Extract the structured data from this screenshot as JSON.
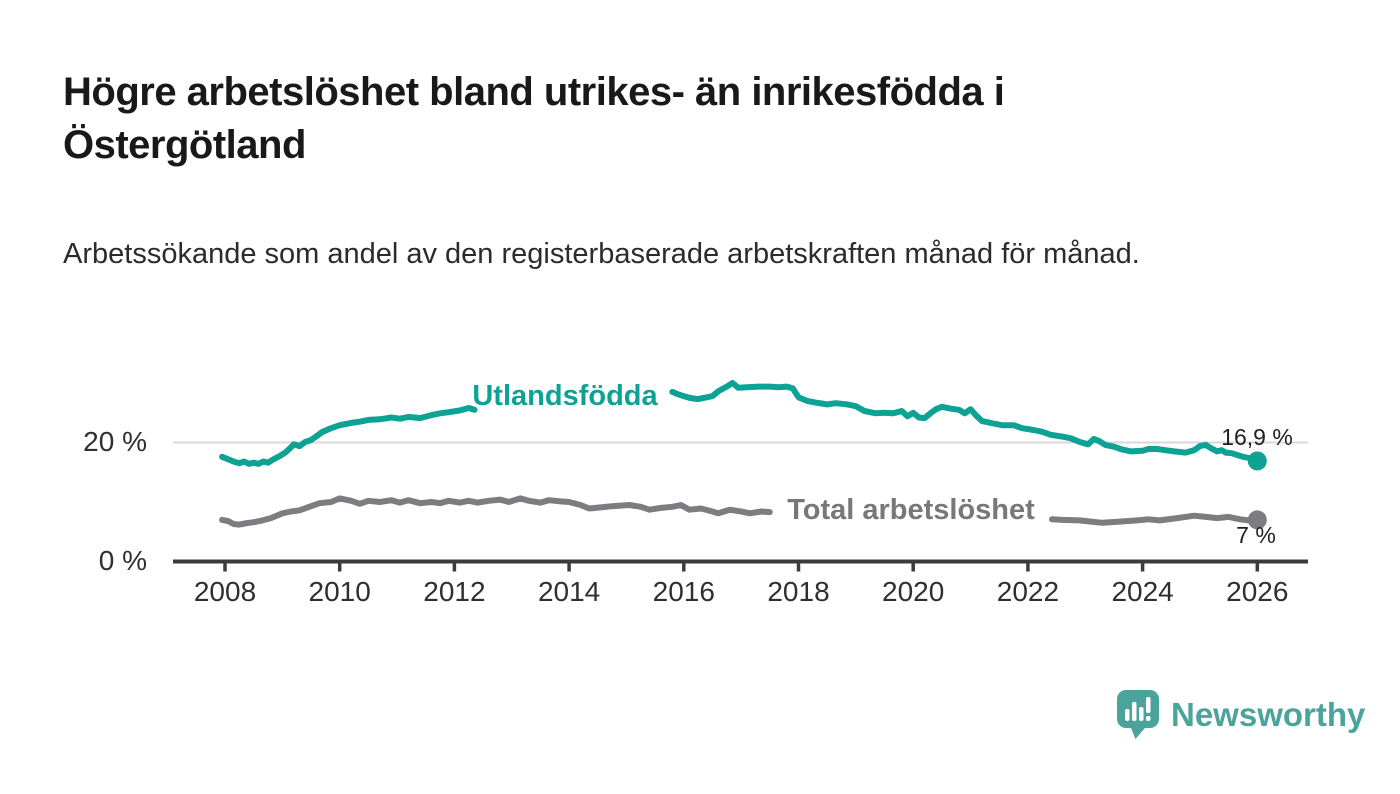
{
  "header": {
    "title": "Högre arbetslöshet bland utrikes- än inrikesfödda i Östergötland",
    "subtitle": "Arbetssökande som andel av den registerbaserade arbetskraften månad för månad."
  },
  "footer": {
    "brand": "Newsworthy"
  },
  "colors": {
    "series_foreign_born": "#0da294",
    "series_total": "#7c7c81",
    "axis": "#3b3b3b",
    "gridline": "#d8d8d8",
    "brand_teal": "#4ba49c",
    "text_dark": "#191919"
  },
  "chart_data": {
    "type": "line",
    "title": "Högre arbetslöshet bland utrikes- än inrikesfödda i Östergötland",
    "subtitle": "Arbetssökande som andel av den registerbaserade arbetskraften månad för månad.",
    "xlabel": "",
    "ylabel": "",
    "grid": "single horizontal gridline at 20 %",
    "legend_position": "inline labels on lines, end-value labels at right",
    "x_axis": {
      "range": [
        2007.9,
        2026.2
      ],
      "ticks": [
        2008,
        2010,
        2012,
        2014,
        2016,
        2018,
        2020,
        2022,
        2024,
        2026
      ]
    },
    "y_axis": {
      "range": [
        0,
        33
      ],
      "unit": "%",
      "ticks": [
        {
          "value": 20,
          "label": "20 %"
        },
        {
          "value": 0,
          "label": "0 %"
        }
      ],
      "gridline_values": [
        20
      ]
    },
    "series": [
      {
        "name": "Utlandsfödda",
        "color": "#0da294",
        "end_label": "16,9 %",
        "end_value": 16.9,
        "label_break": [
          2012.4,
          2015.75
        ],
        "points": [
          [
            2007.95,
            17.6
          ],
          [
            2008.05,
            17.2
          ],
          [
            2008.15,
            16.8
          ],
          [
            2008.25,
            16.5
          ],
          [
            2008.33,
            16.8
          ],
          [
            2008.42,
            16.4
          ],
          [
            2008.5,
            16.6
          ],
          [
            2008.58,
            16.4
          ],
          [
            2008.67,
            16.8
          ],
          [
            2008.75,
            16.6
          ],
          [
            2008.85,
            17.2
          ],
          [
            2008.95,
            17.7
          ],
          [
            2009.05,
            18.3
          ],
          [
            2009.15,
            19.2
          ],
          [
            2009.2,
            19.7
          ],
          [
            2009.3,
            19.4
          ],
          [
            2009.4,
            20.1
          ],
          [
            2009.5,
            20.4
          ],
          [
            2009.6,
            21.1
          ],
          [
            2009.7,
            21.8
          ],
          [
            2009.85,
            22.4
          ],
          [
            2010.0,
            22.9
          ],
          [
            2010.2,
            23.3
          ],
          [
            2010.35,
            23.5
          ],
          [
            2010.5,
            23.8
          ],
          [
            2010.7,
            23.9
          ],
          [
            2010.9,
            24.2
          ],
          [
            2011.05,
            24.0
          ],
          [
            2011.2,
            24.3
          ],
          [
            2011.4,
            24.1
          ],
          [
            2011.6,
            24.6
          ],
          [
            2011.75,
            24.9
          ],
          [
            2011.9,
            25.1
          ],
          [
            2012.1,
            25.4
          ],
          [
            2012.25,
            25.8
          ],
          [
            2012.35,
            25.5
          ],
          [
            2012.6,
            25.9
          ],
          [
            2013.0,
            26.3
          ],
          [
            2013.5,
            26.7
          ],
          [
            2014.0,
            27.1
          ],
          [
            2014.5,
            27.5
          ],
          [
            2015.0,
            27.9
          ],
          [
            2015.4,
            28.2
          ],
          [
            2015.8,
            28.5
          ],
          [
            2015.9,
            28.1
          ],
          [
            2016.0,
            27.8
          ],
          [
            2016.1,
            27.5
          ],
          [
            2016.25,
            27.3
          ],
          [
            2016.4,
            27.6
          ],
          [
            2016.5,
            27.8
          ],
          [
            2016.6,
            28.6
          ],
          [
            2016.75,
            29.4
          ],
          [
            2016.85,
            30.0
          ],
          [
            2016.95,
            29.2
          ],
          [
            2017.1,
            29.3
          ],
          [
            2017.3,
            29.4
          ],
          [
            2017.5,
            29.4
          ],
          [
            2017.65,
            29.3
          ],
          [
            2017.8,
            29.4
          ],
          [
            2017.9,
            29.1
          ],
          [
            2018.0,
            27.6
          ],
          [
            2018.15,
            27.0
          ],
          [
            2018.3,
            26.7
          ],
          [
            2018.5,
            26.4
          ],
          [
            2018.65,
            26.6
          ],
          [
            2018.85,
            26.4
          ],
          [
            2019.0,
            26.1
          ],
          [
            2019.15,
            25.3
          ],
          [
            2019.35,
            24.9
          ],
          [
            2019.5,
            25.0
          ],
          [
            2019.65,
            24.9
          ],
          [
            2019.8,
            25.3
          ],
          [
            2019.9,
            24.4
          ],
          [
            2020.0,
            25.0
          ],
          [
            2020.1,
            24.2
          ],
          [
            2020.2,
            24.1
          ],
          [
            2020.3,
            24.9
          ],
          [
            2020.4,
            25.6
          ],
          [
            2020.5,
            26.0
          ],
          [
            2020.65,
            25.7
          ],
          [
            2020.8,
            25.5
          ],
          [
            2020.9,
            24.9
          ],
          [
            2021.0,
            25.6
          ],
          [
            2021.1,
            24.5
          ],
          [
            2021.2,
            23.6
          ],
          [
            2021.4,
            23.2
          ],
          [
            2021.55,
            22.9
          ],
          [
            2021.75,
            22.9
          ],
          [
            2021.9,
            22.4
          ],
          [
            2022.1,
            22.1
          ],
          [
            2022.25,
            21.8
          ],
          [
            2022.4,
            21.3
          ],
          [
            2022.6,
            21.0
          ],
          [
            2022.75,
            20.7
          ],
          [
            2022.9,
            20.1
          ],
          [
            2023.05,
            19.7
          ],
          [
            2023.15,
            20.6
          ],
          [
            2023.25,
            20.2
          ],
          [
            2023.35,
            19.6
          ],
          [
            2023.5,
            19.3
          ],
          [
            2023.65,
            18.8
          ],
          [
            2023.8,
            18.5
          ],
          [
            2024.0,
            18.6
          ],
          [
            2024.1,
            18.9
          ],
          [
            2024.25,
            18.9
          ],
          [
            2024.4,
            18.7
          ],
          [
            2024.55,
            18.5
          ],
          [
            2024.75,
            18.3
          ],
          [
            2024.9,
            18.7
          ],
          [
            2025.0,
            19.4
          ],
          [
            2025.1,
            19.6
          ],
          [
            2025.2,
            19.0
          ],
          [
            2025.3,
            18.5
          ],
          [
            2025.38,
            18.7
          ],
          [
            2025.45,
            18.3
          ],
          [
            2025.55,
            18.2
          ],
          [
            2025.65,
            17.9
          ],
          [
            2025.75,
            17.6
          ],
          [
            2025.85,
            17.4
          ],
          [
            2025.92,
            17.2
          ],
          [
            2026.0,
            16.9
          ]
        ]
      },
      {
        "name": "Total arbetslöshet",
        "color": "#7c7c81",
        "end_label": "7 %",
        "end_value": 7,
        "label_break": [
          2017.55,
          2022.38
        ],
        "points": [
          [
            2007.95,
            7.0
          ],
          [
            2008.05,
            6.8
          ],
          [
            2008.15,
            6.3
          ],
          [
            2008.25,
            6.2
          ],
          [
            2008.35,
            6.4
          ],
          [
            2008.5,
            6.6
          ],
          [
            2008.65,
            6.9
          ],
          [
            2008.8,
            7.3
          ],
          [
            2009.0,
            8.1
          ],
          [
            2009.15,
            8.4
          ],
          [
            2009.3,
            8.6
          ],
          [
            2009.5,
            9.3
          ],
          [
            2009.65,
            9.8
          ],
          [
            2009.85,
            10.0
          ],
          [
            2010.0,
            10.6
          ],
          [
            2010.2,
            10.2
          ],
          [
            2010.35,
            9.7
          ],
          [
            2010.5,
            10.2
          ],
          [
            2010.7,
            10.0
          ],
          [
            2010.9,
            10.3
          ],
          [
            2011.05,
            9.9
          ],
          [
            2011.2,
            10.3
          ],
          [
            2011.4,
            9.8
          ],
          [
            2011.6,
            10.0
          ],
          [
            2011.75,
            9.8
          ],
          [
            2011.9,
            10.2
          ],
          [
            2012.1,
            9.9
          ],
          [
            2012.25,
            10.2
          ],
          [
            2012.4,
            9.9
          ],
          [
            2012.6,
            10.2
          ],
          [
            2012.8,
            10.4
          ],
          [
            2012.95,
            10.0
          ],
          [
            2013.15,
            10.6
          ],
          [
            2013.3,
            10.2
          ],
          [
            2013.5,
            9.9
          ],
          [
            2013.65,
            10.3
          ],
          [
            2013.85,
            10.1
          ],
          [
            2014.0,
            10.0
          ],
          [
            2014.2,
            9.5
          ],
          [
            2014.35,
            8.9
          ],
          [
            2014.55,
            9.1
          ],
          [
            2014.75,
            9.3
          ],
          [
            2015.05,
            9.5
          ],
          [
            2015.25,
            9.2
          ],
          [
            2015.4,
            8.7
          ],
          [
            2015.6,
            9.0
          ],
          [
            2015.8,
            9.2
          ],
          [
            2015.95,
            9.5
          ],
          [
            2016.1,
            8.7
          ],
          [
            2016.3,
            8.9
          ],
          [
            2016.5,
            8.4
          ],
          [
            2016.6,
            8.1
          ],
          [
            2016.8,
            8.7
          ],
          [
            2017.0,
            8.4
          ],
          [
            2017.15,
            8.1
          ],
          [
            2017.35,
            8.4
          ],
          [
            2017.5,
            8.3
          ],
          [
            2017.8,
            8.0
          ],
          [
            2018.2,
            7.6
          ],
          [
            2018.7,
            7.4
          ],
          [
            2019.2,
            7.5
          ],
          [
            2019.8,
            7.7
          ],
          [
            2020.3,
            8.1
          ],
          [
            2020.8,
            8.0
          ],
          [
            2021.3,
            7.6
          ],
          [
            2021.8,
            7.3
          ],
          [
            2022.2,
            7.2
          ],
          [
            2022.42,
            7.1
          ],
          [
            2022.6,
            7.0
          ],
          [
            2022.9,
            6.9
          ],
          [
            2023.1,
            6.7
          ],
          [
            2023.3,
            6.5
          ],
          [
            2023.6,
            6.7
          ],
          [
            2023.9,
            6.9
          ],
          [
            2024.1,
            7.1
          ],
          [
            2024.3,
            6.9
          ],
          [
            2024.6,
            7.3
          ],
          [
            2024.9,
            7.7
          ],
          [
            2025.1,
            7.5
          ],
          [
            2025.3,
            7.3
          ],
          [
            2025.5,
            7.5
          ],
          [
            2025.7,
            7.1
          ],
          [
            2025.85,
            6.9
          ],
          [
            2026.0,
            7.0
          ]
        ]
      }
    ]
  }
}
